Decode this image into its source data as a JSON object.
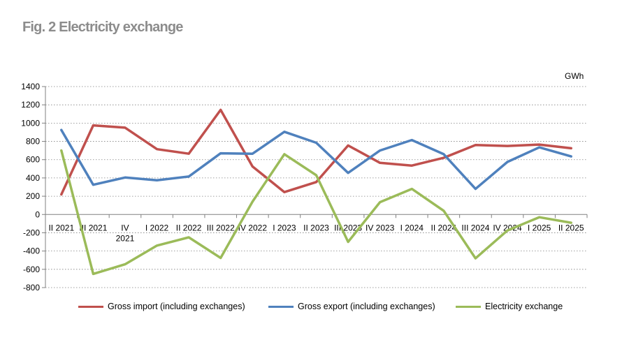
{
  "figure": {
    "title": "Fig. 2  Electricity exchange"
  },
  "colors": {
    "import": "#C0504D",
    "export": "#4F81BD",
    "exchange": "#9BBB59",
    "grid": "#808080",
    "axis": "#808080"
  },
  "chart_data": {
    "type": "line",
    "unit": "GWh",
    "categories": [
      "II 2021",
      "III 2021",
      "IV 2021",
      "I 2022",
      "II 2022",
      "III 2022",
      "IV 2022",
      "I 2023",
      "II 2023",
      "III 2023",
      "IV 2023",
      "I 2024",
      "II 2024",
      "III 2024",
      "IV 2024",
      "I 2025",
      "II 2025"
    ],
    "category_lines": [
      [
        "II 2021"
      ],
      [
        "III 2021"
      ],
      [
        "IV",
        "2021"
      ],
      [
        "I 2022"
      ],
      [
        "II 2022"
      ],
      [
        "III 2022"
      ],
      [
        "IV 2022"
      ],
      [
        "I 2023"
      ],
      [
        "II 2023"
      ],
      [
        "III 2023"
      ],
      [
        "IV 2023"
      ],
      [
        "I 2024"
      ],
      [
        "II 2024"
      ],
      [
        "III 2024"
      ],
      [
        "IV 2024"
      ],
      [
        "I 2025"
      ],
      [
        "II 2025"
      ]
    ],
    "ylim": [
      -800,
      1400
    ],
    "yticks": [
      -800,
      -600,
      -400,
      -200,
      0,
      200,
      400,
      600,
      800,
      1000,
      1200,
      1400
    ],
    "grid": true,
    "legend_position": "bottom",
    "series": [
      {
        "name": "Gross import (including exchanges)",
        "color_key": "import",
        "values": [
          220,
          975,
          950,
          715,
          665,
          1145,
          525,
          245,
          355,
          755,
          565,
          535,
          620,
          760,
          750,
          765,
          725
        ]
      },
      {
        "name": "Gross export (including exchanges)",
        "color_key": "export",
        "values": [
          925,
          325,
          405,
          375,
          415,
          670,
          665,
          905,
          785,
          455,
          700,
          815,
          660,
          280,
          575,
          735,
          635
        ]
      },
      {
        "name": "Electricity exchange",
        "color_key": "exchange",
        "values": [
          700,
          -650,
          -545,
          -340,
          -250,
          -475,
          140,
          660,
          430,
          -300,
          135,
          280,
          40,
          -480,
          -175,
          -30,
          -90
        ]
      }
    ]
  }
}
